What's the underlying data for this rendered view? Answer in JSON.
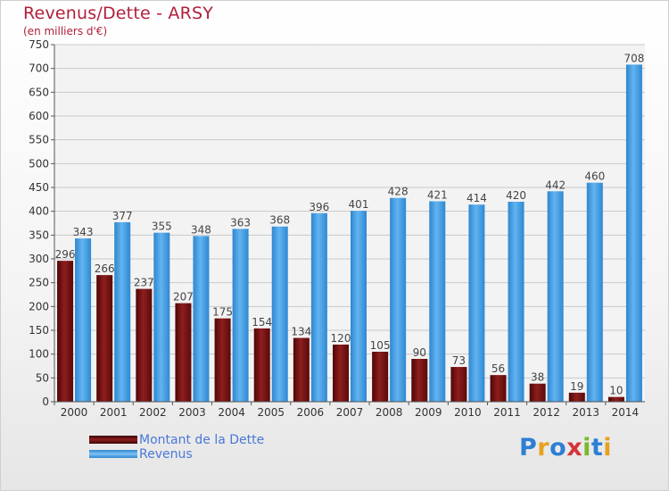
{
  "title": "Revenus/Dette - ARSY",
  "subtitle": "(en milliers d'€)",
  "logo": "Proxiti",
  "colors": {
    "debt": "#7a1414",
    "revenue": "#4ea6e8",
    "title": "#b0203a",
    "legend_text": "#4a78d8"
  },
  "chart_data": {
    "type": "bar",
    "categories": [
      "2000",
      "2001",
      "2002",
      "2003",
      "2004",
      "2005",
      "2006",
      "2007",
      "2008",
      "2009",
      "2010",
      "2011",
      "2012",
      "2013",
      "2014"
    ],
    "series": [
      {
        "name": "Montant de la Dette",
        "values": [
          296,
          266,
          237,
          207,
          175,
          154,
          134,
          120,
          105,
          90,
          73,
          56,
          38,
          19,
          10
        ]
      },
      {
        "name": "Revenus",
        "values": [
          343,
          377,
          355,
          348,
          363,
          368,
          396,
          401,
          428,
          421,
          414,
          420,
          442,
          460,
          708
        ]
      }
    ],
    "ylim": [
      0,
      750
    ],
    "yticks": [
      0,
      50,
      100,
      150,
      200,
      250,
      300,
      350,
      400,
      450,
      500,
      550,
      600,
      650,
      700,
      750
    ],
    "grid": true,
    "legend_position": "bottom-left"
  }
}
